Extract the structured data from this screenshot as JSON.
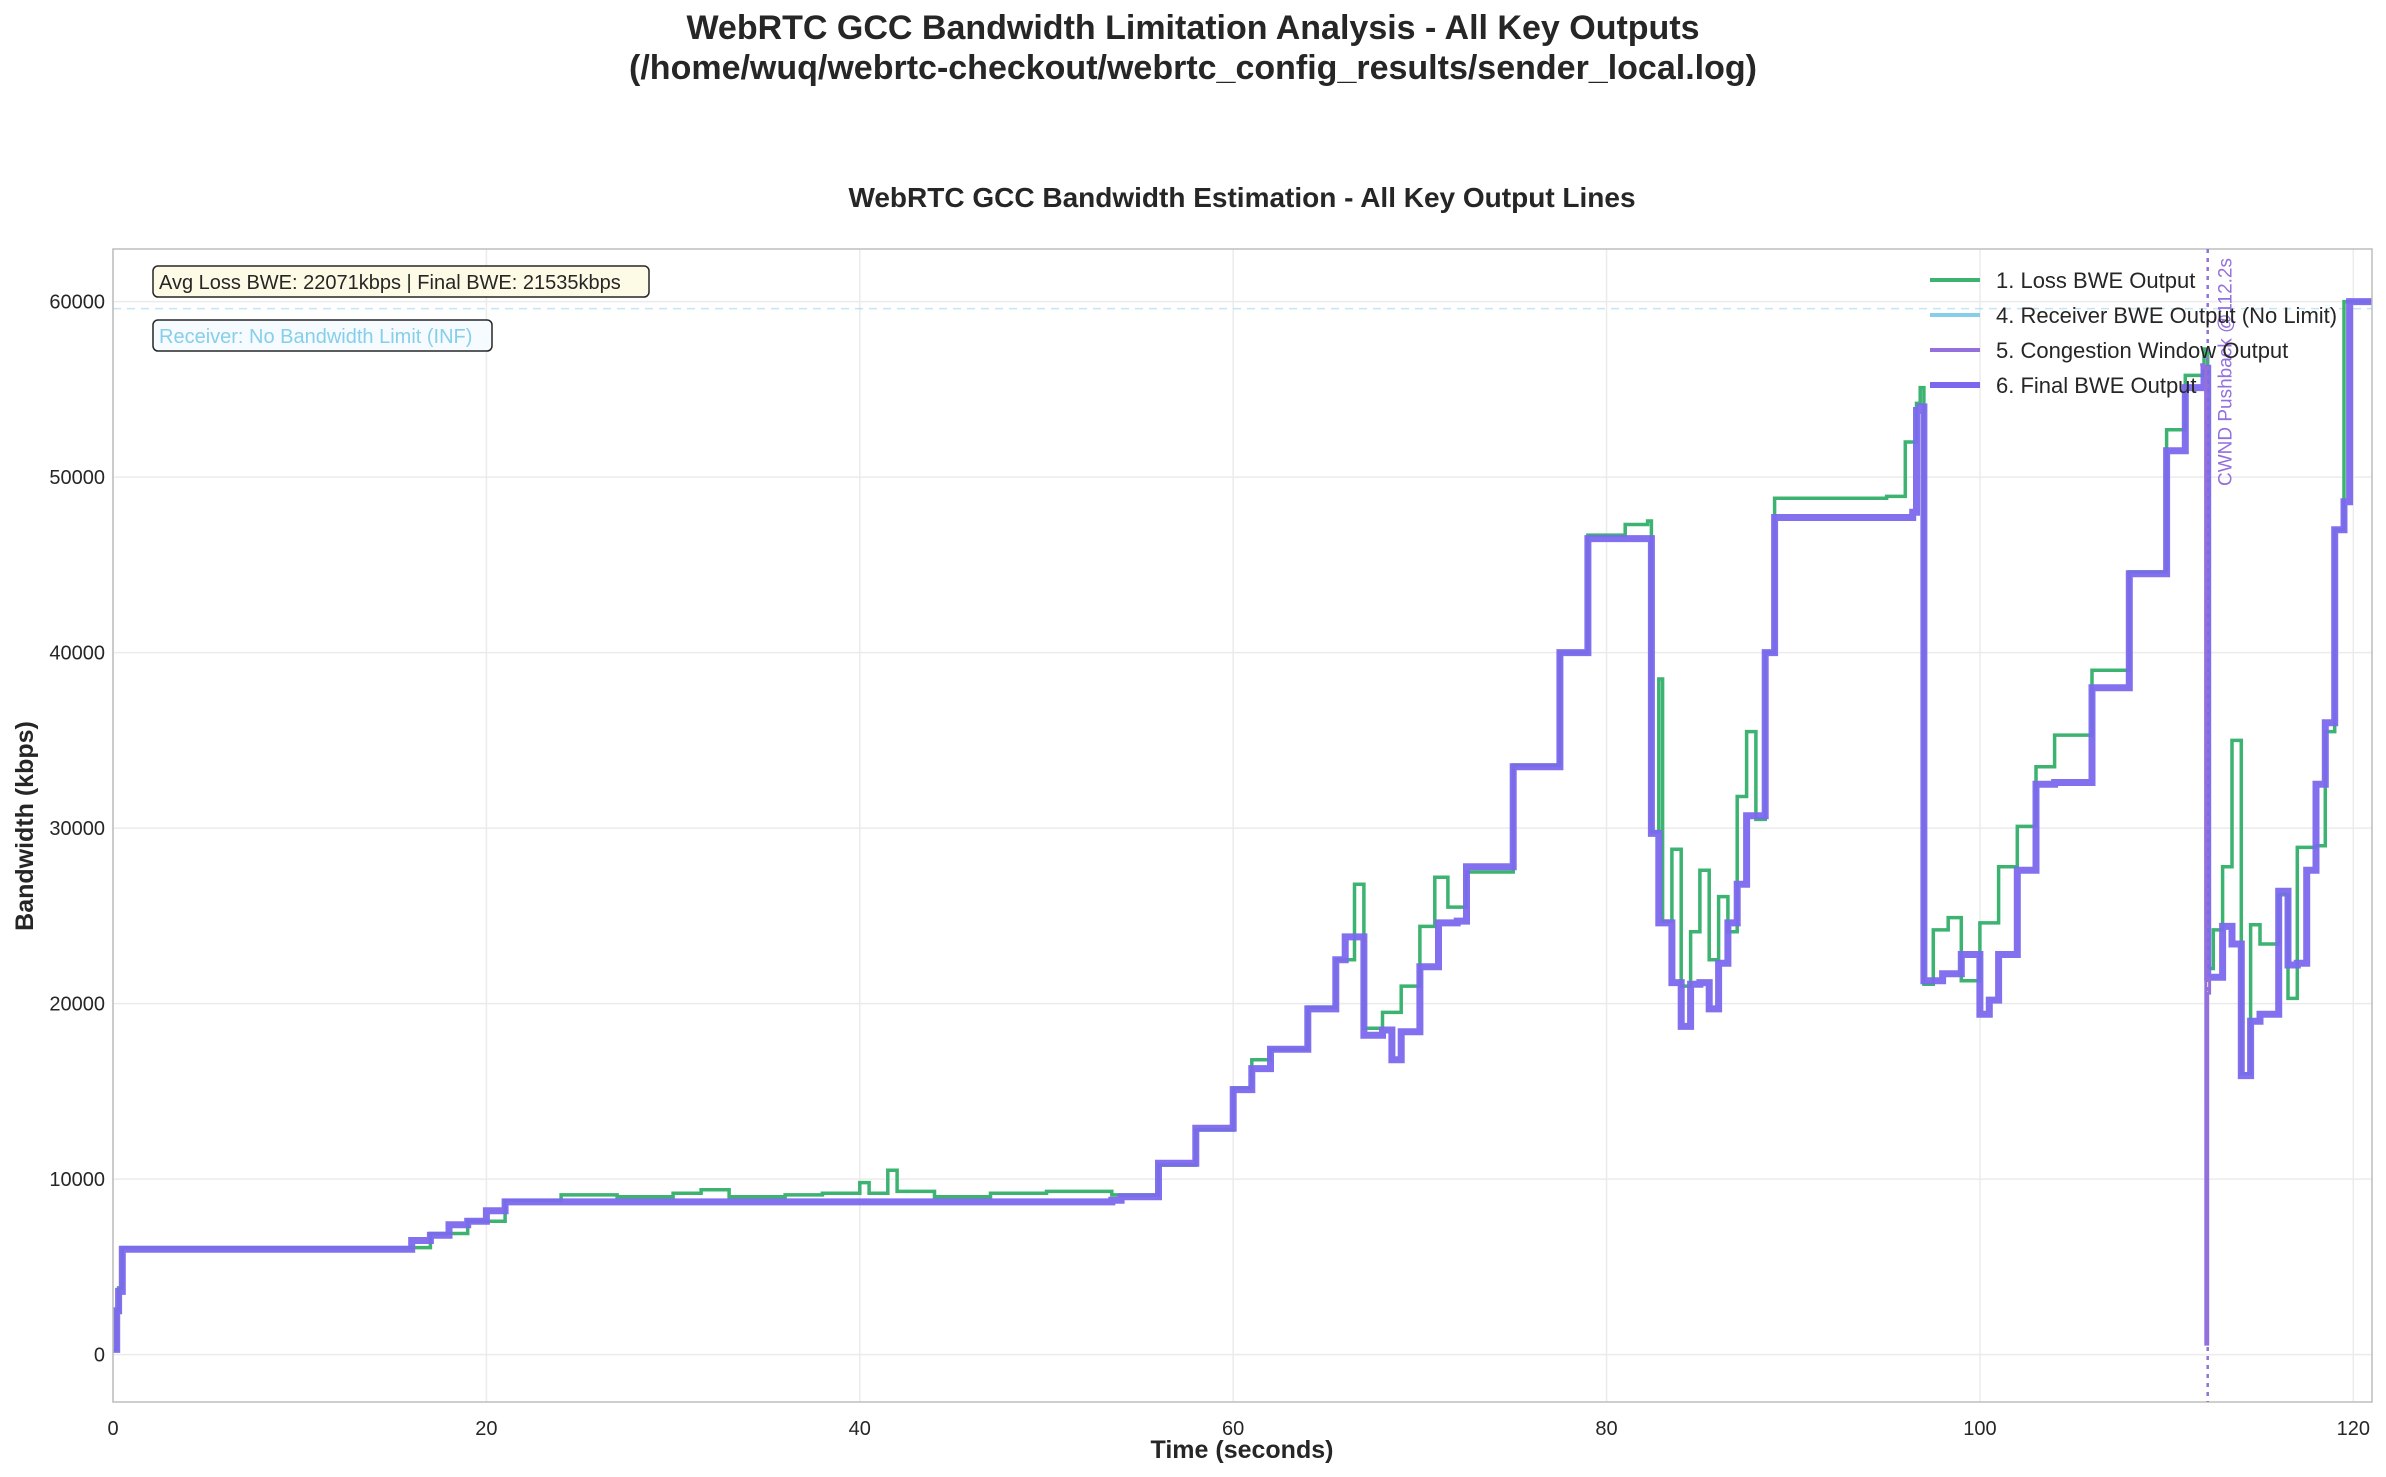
{
  "suptitle": {
    "line1": "WebRTC GCC Bandwidth Limitation Analysis - All Key Outputs",
    "line2": "(/home/wuq/webrtc-checkout/webrtc_config_results/sender_local.log)"
  },
  "chart_data": {
    "type": "line",
    "title": "WebRTC GCC Bandwidth Estimation - All Key Output Lines",
    "xlabel": "Time (seconds)",
    "ylabel": "Bandwidth (kbps)",
    "xlim": [
      0,
      121
    ],
    "ylim": [
      -2700,
      63000
    ],
    "xticks": [
      0,
      20,
      40,
      60,
      80,
      100,
      120
    ],
    "yticks": [
      0,
      10000,
      20000,
      30000,
      40000,
      50000,
      60000
    ],
    "grid": true,
    "legend_position": "top-right",
    "annotations": {
      "stats": "Avg Loss BWE: 22071kbps | Final BWE: 21535kbps",
      "receiver": "Receiver: No Bandwidth Limit (INF)",
      "cwnd_label": "CWND Pushback @112.2s",
      "cwnd_time": 112.2,
      "receiver_limit_level": 59600
    },
    "series": [
      {
        "name": "1. Loss BWE Output",
        "color": "#3cb371",
        "points": [
          [
            0,
            300
          ],
          [
            0.2,
            2500
          ],
          [
            0.3,
            3800
          ],
          [
            0.5,
            6100
          ],
          [
            15,
            6100
          ],
          [
            17,
            6900
          ],
          [
            19,
            7600
          ],
          [
            21,
            8800
          ],
          [
            24,
            9100
          ],
          [
            27,
            9000
          ],
          [
            30,
            9200
          ],
          [
            31.5,
            9400
          ],
          [
            33,
            9000
          ],
          [
            36,
            9100
          ],
          [
            38,
            9200
          ],
          [
            40,
            9800
          ],
          [
            40.5,
            9200
          ],
          [
            41.5,
            10500
          ],
          [
            42,
            9300
          ],
          [
            44,
            9000
          ],
          [
            47,
            9200
          ],
          [
            50,
            9300
          ],
          [
            53.5,
            9100
          ],
          [
            56,
            10800
          ],
          [
            58,
            12800
          ],
          [
            60,
            15200
          ],
          [
            61,
            16800
          ],
          [
            62,
            17400
          ],
          [
            64,
            19800
          ],
          [
            65.5,
            22500
          ],
          [
            66.5,
            26800
          ],
          [
            67,
            18600
          ],
          [
            68,
            19500
          ],
          [
            69,
            21000
          ],
          [
            70,
            24400
          ],
          [
            70.8,
            27200
          ],
          [
            71.5,
            25500
          ],
          [
            72.5,
            27500
          ],
          [
            75,
            33600
          ],
          [
            77.5,
            40000
          ],
          [
            79,
            46700
          ],
          [
            81,
            47300
          ],
          [
            82.2,
            47500
          ],
          [
            82.4,
            29800
          ],
          [
            82.8,
            38500
          ],
          [
            83,
            24700
          ],
          [
            83.5,
            28800
          ],
          [
            84,
            21000
          ],
          [
            84.5,
            24100
          ],
          [
            85,
            27600
          ],
          [
            85.5,
            22500
          ],
          [
            86,
            26100
          ],
          [
            86.5,
            24100
          ],
          [
            87,
            31800
          ],
          [
            87.5,
            35500
          ],
          [
            88,
            30500
          ],
          [
            88.5,
            40000
          ],
          [
            89,
            48800
          ],
          [
            95,
            48900
          ],
          [
            96,
            52000
          ],
          [
            96.6,
            54200
          ],
          [
            96.8,
            55100
          ],
          [
            97,
            21100
          ],
          [
            97.5,
            24200
          ],
          [
            98.3,
            24900
          ],
          [
            99,
            21300
          ],
          [
            100,
            24600
          ],
          [
            101,
            27800
          ],
          [
            102,
            30100
          ],
          [
            103,
            33500
          ],
          [
            104,
            35300
          ],
          [
            106,
            39000
          ],
          [
            108,
            44600
          ],
          [
            110,
            52700
          ],
          [
            111,
            55800
          ],
          [
            112,
            57300
          ],
          [
            112.2,
            22000
          ],
          [
            112.5,
            24200
          ],
          [
            113,
            27800
          ],
          [
            113.5,
            35000
          ],
          [
            114,
            16000
          ],
          [
            114.5,
            24500
          ],
          [
            115,
            23400
          ],
          [
            116,
            26200
          ],
          [
            116.5,
            20300
          ],
          [
            117,
            28900
          ],
          [
            118,
            29000
          ],
          [
            118.5,
            35500
          ],
          [
            119,
            47000
          ],
          [
            119.5,
            60000
          ],
          [
            121,
            60000
          ]
        ]
      },
      {
        "name": "4. Receiver BWE Output (No Limit)",
        "color": "#87ceeb",
        "points": []
      },
      {
        "name": "5. Congestion Window Output",
        "color": "#9370db",
        "points": [
          [
            111.8,
            56400
          ],
          [
            112.0,
            56200
          ],
          [
            112.1,
            600
          ],
          [
            112.2,
            20600
          ],
          [
            112.3,
            21500
          ]
        ]
      },
      {
        "name": "6. Final BWE Output",
        "color": "#7b68ee",
        "points": [
          [
            0,
            300
          ],
          [
            0.2,
            2500
          ],
          [
            0.3,
            3600
          ],
          [
            0.5,
            6000
          ],
          [
            15,
            6000
          ],
          [
            16,
            6500
          ],
          [
            17,
            6800
          ],
          [
            18,
            7400
          ],
          [
            19,
            7600
          ],
          [
            20,
            8200
          ],
          [
            21,
            8700
          ],
          [
            53.5,
            8800
          ],
          [
            54,
            9000
          ],
          [
            56,
            10900
          ],
          [
            58,
            12900
          ],
          [
            60,
            15100
          ],
          [
            61,
            16300
          ],
          [
            62,
            17400
          ],
          [
            64,
            19700
          ],
          [
            65.5,
            22500
          ],
          [
            66,
            23800
          ],
          [
            66.5,
            23800
          ],
          [
            67,
            18200
          ],
          [
            68,
            18500
          ],
          [
            68.5,
            16800
          ],
          [
            69,
            18400
          ],
          [
            70,
            22100
          ],
          [
            71,
            24600
          ],
          [
            72,
            24700
          ],
          [
            72.5,
            27800
          ],
          [
            75,
            33500
          ],
          [
            77.5,
            40000
          ],
          [
            79,
            46500
          ],
          [
            82.2,
            46500
          ],
          [
            82.4,
            29700
          ],
          [
            82.8,
            24600
          ],
          [
            83.5,
            21200
          ],
          [
            84,
            18700
          ],
          [
            84.5,
            21100
          ],
          [
            85,
            21200
          ],
          [
            85.5,
            19700
          ],
          [
            86,
            22300
          ],
          [
            86.5,
            24600
          ],
          [
            87,
            26800
          ],
          [
            87.5,
            30700
          ],
          [
            88,
            30700
          ],
          [
            88.5,
            40000
          ],
          [
            89,
            47700
          ],
          [
            96.4,
            48000
          ],
          [
            96.6,
            53800
          ],
          [
            96.8,
            54000
          ],
          [
            97,
            21300
          ],
          [
            98,
            21700
          ],
          [
            99,
            22800
          ],
          [
            100,
            19400
          ],
          [
            100.5,
            20200
          ],
          [
            101,
            22800
          ],
          [
            102,
            27600
          ],
          [
            103,
            32500
          ],
          [
            104,
            32600
          ],
          [
            106,
            38000
          ],
          [
            108,
            44500
          ],
          [
            110,
            51500
          ],
          [
            111,
            55100
          ],
          [
            112,
            56200
          ],
          [
            112.2,
            21500
          ],
          [
            113,
            24400
          ],
          [
            113.5,
            23400
          ],
          [
            114,
            15900
          ],
          [
            114.5,
            19000
          ],
          [
            115,
            19400
          ],
          [
            116,
            26400
          ],
          [
            116.5,
            22200
          ],
          [
            117,
            22300
          ],
          [
            117.5,
            27600
          ],
          [
            118,
            32500
          ],
          [
            118.5,
            36000
          ],
          [
            119,
            47000
          ],
          [
            119.5,
            48600
          ],
          [
            119.8,
            60000
          ],
          [
            121,
            60000
          ]
        ]
      }
    ]
  }
}
